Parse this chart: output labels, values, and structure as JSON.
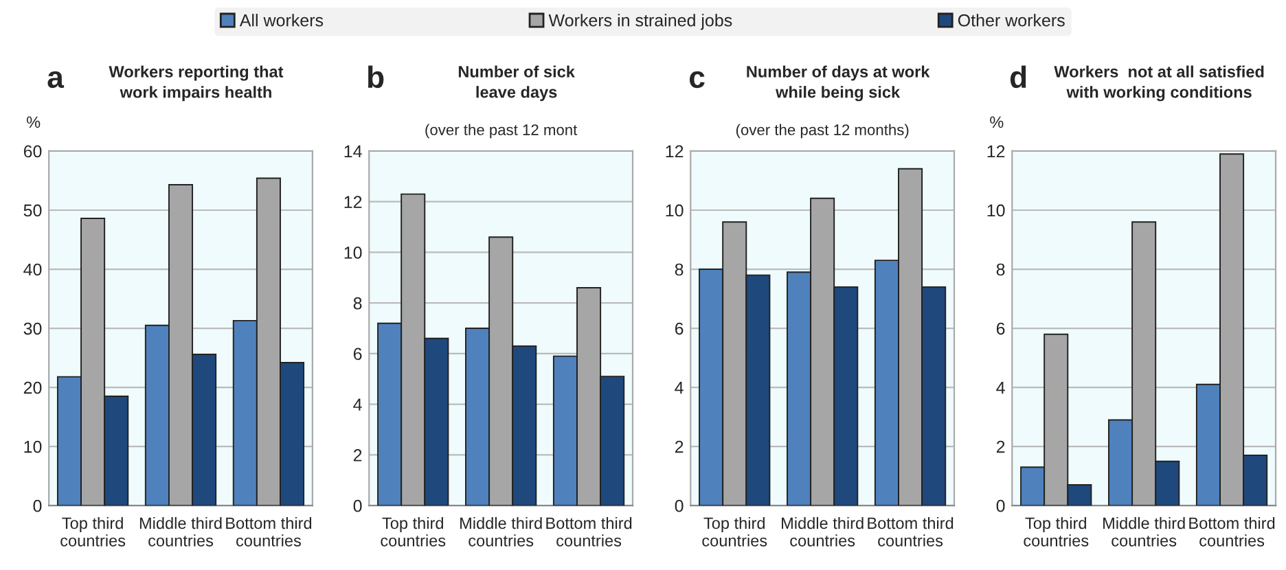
{
  "chart_data": [
    {
      "type": "bar",
      "title": "Workers reporting that\nwork impairs health",
      "annotations": [
        "a"
      ],
      "ylabel": "%",
      "categories": [
        "Top third\ncountries",
        "Middle third\ncountries",
        "Bottom third\ncountries"
      ],
      "series": [
        {
          "name": "All workers",
          "color": "#4f81bd",
          "values": [
            21.8,
            30.5,
            31.3
          ]
        },
        {
          "name": "Workers in strained jobs",
          "color": "#a6a6a6",
          "values": [
            48.6,
            54.3,
            55.4
          ]
        },
        {
          "name": "Other workers",
          "color": "#1f497d",
          "values": [
            18.5,
            25.6,
            24.2
          ]
        }
      ],
      "ylim": [
        0,
        60
      ],
      "yticks": [
        0,
        10,
        20,
        30,
        40,
        50,
        60
      ],
      "grid": "y",
      "legend": "top"
    },
    {
      "type": "bar",
      "title": "Number of sick\nleave days",
      "subtitle": "(over the past 12 mont",
      "annotations": [
        "b"
      ],
      "categories": [
        "Top third\ncountries",
        "Middle third\ncountries",
        "Bottom third\ncountries"
      ],
      "series": [
        {
          "color": "#4f81bd",
          "values": [
            7.2,
            7.0,
            5.9
          ]
        },
        {
          "color": "#a6a6a6",
          "values": [
            12.3,
            10.6,
            8.6
          ]
        },
        {
          "color": "#1f497d",
          "values": [
            6.6,
            6.3,
            5.1
          ]
        }
      ],
      "ylim": [
        0,
        14
      ],
      "yticks": [
        0,
        2,
        4,
        6,
        8,
        10,
        12,
        14
      ],
      "grid": "y"
    },
    {
      "type": "bar",
      "title": "Number of days at work\nwhile being sick",
      "subtitle": "(over the past 12 months)",
      "annotations": [
        "c"
      ],
      "categories": [
        "Top third\ncountries",
        "Middle third\ncountries",
        "Bottom third\ncountries"
      ],
      "series": [
        {
          "color": "#4f81bd",
          "values": [
            8.0,
            7.9,
            8.3
          ]
        },
        {
          "color": "#a6a6a6",
          "values": [
            9.6,
            10.4,
            11.4
          ]
        },
        {
          "color": "#1f497d",
          "values": [
            7.8,
            7.4,
            7.4
          ]
        }
      ],
      "ylim": [
        0,
        12
      ],
      "yticks": [
        0,
        2,
        4,
        6,
        8,
        10,
        12
      ],
      "grid": "y"
    },
    {
      "type": "bar",
      "title": "Workers  not at all satisfied\nwith working conditions",
      "annotations": [
        "d"
      ],
      "ylabel": "%",
      "categories": [
        "Top third\ncountries",
        "Middle third\ncountries",
        "Bottom third\ncountries"
      ],
      "series": [
        {
          "color": "#4f81bd",
          "values": [
            1.3,
            2.9,
            4.1
          ]
        },
        {
          "color": "#a6a6a6",
          "values": [
            5.8,
            9.6,
            11.9
          ]
        },
        {
          "color": "#1f497d",
          "values": [
            0.7,
            1.5,
            1.7
          ]
        }
      ],
      "ylim": [
        0,
        12
      ],
      "yticks": [
        0,
        2,
        4,
        6,
        8,
        10,
        12
      ],
      "grid": "y"
    }
  ]
}
